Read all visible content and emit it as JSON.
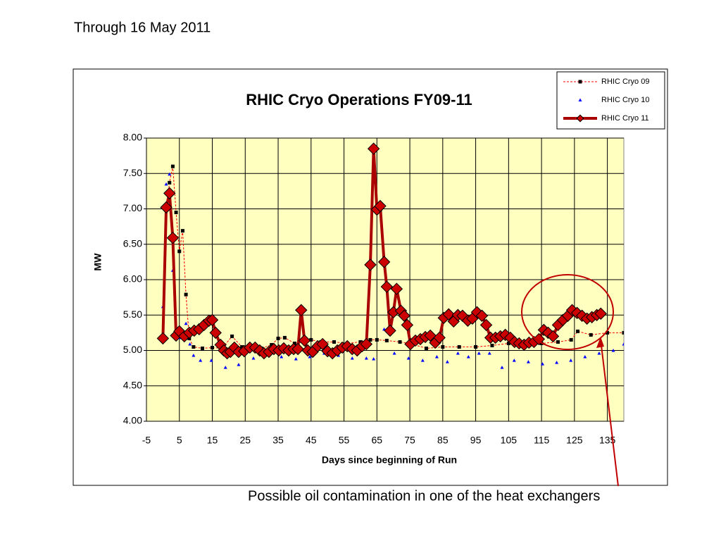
{
  "header": "Through 16 May 2011",
  "annotation": "Possible oil contamination in one of the heat exchangers",
  "chart_data": {
    "type": "line",
    "title": "RHIC Cryo Operations FY09-11",
    "x_label": "Days since beginning of Run",
    "y_label": "MW",
    "xlim": [
      -5,
      140
    ],
    "ylim": [
      4,
      8
    ],
    "xticks": [
      -5,
      5,
      15,
      25,
      35,
      45,
      55,
      65,
      75,
      85,
      95,
      105,
      115,
      125,
      135
    ],
    "yticks": [
      {
        "value": 4,
        "label": "4.00"
      },
      {
        "value": 4.5,
        "label": "4.50"
      },
      {
        "value": 5,
        "label": "5.00"
      },
      {
        "value": 5.5,
        "label": "5.50"
      },
      {
        "value": 6,
        "label": "6.00"
      },
      {
        "value": 6.5,
        "label": "6.50"
      },
      {
        "value": 7,
        "label": "7.00"
      },
      {
        "value": 7.5,
        "label": "7.50"
      },
      {
        "value": 8,
        "label": "8.00"
      }
    ],
    "grid": true,
    "legend": "upper right",
    "background": "#ffffc0",
    "series": [
      {
        "name": "RHIC Cryo 09",
        "color": "#000000",
        "line_color": "#ff0000",
        "line_style": "dashed",
        "marker": "square",
        "x": [
          1.2,
          2,
          3,
          4,
          5,
          6,
          7,
          8,
          9.3,
          12,
          15,
          18,
          21,
          24,
          27,
          30,
          33,
          35,
          37,
          40,
          43,
          45,
          48,
          52,
          56,
          60,
          63,
          65,
          68,
          72,
          75,
          80,
          85,
          90,
          95,
          100,
          105,
          110,
          115,
          120,
          124,
          126,
          130,
          135,
          140
        ],
        "values": [
          7.05,
          7.37,
          7.6,
          6.95,
          6.4,
          6.69,
          5.79,
          5.17,
          5.05,
          5.03,
          5.04,
          5.03,
          5.2,
          5.05,
          5.04,
          5.03,
          5.08,
          5.17,
          5.18,
          5.1,
          5.12,
          5.15,
          5.12,
          5.12,
          5.1,
          5.12,
          5.15,
          5.15,
          5.14,
          5.12,
          5.1,
          5.03,
          5.05,
          5.05,
          5.05,
          5.07,
          5.1,
          5.1,
          5.1,
          5.12,
          5.15,
          5.27,
          5.22,
          5.25,
          5.25
        ]
      },
      {
        "name": "RHIC Cryo 10",
        "color": "#0000ff",
        "line_color": null,
        "line_style": "none",
        "marker": "triangle",
        "x": [
          0,
          1,
          2,
          3,
          4,
          5,
          7,
          8.2,
          9.3,
          11.4,
          14.7,
          19,
          23,
          27.5,
          31.8,
          36,
          40.4,
          44.6,
          49,
          53.3,
          57.5,
          61.8,
          64,
          67.2,
          70.3,
          74.6,
          78.9,
          83.2,
          86.4,
          89.6,
          92.8,
          96,
          99.2,
          103,
          106.7,
          111,
          115.3,
          119.6,
          123.9,
          128.2,
          132.5,
          136.8,
          140
        ],
        "values": [
          5.62,
          7.35,
          7.49,
          6.13,
          5.2,
          5.18,
          5.38,
          5.09,
          4.93,
          4.86,
          4.86,
          4.76,
          4.8,
          4.89,
          4.96,
          4.91,
          4.88,
          4.91,
          4.96,
          4.93,
          4.89,
          4.89,
          4.88,
          5.3,
          4.96,
          4.89,
          4.86,
          4.91,
          4.84,
          4.96,
          4.91,
          4.96,
          4.96,
          4.76,
          4.86,
          4.84,
          4.81,
          4.83,
          4.86,
          4.91,
          4.96,
          5.0,
          5.09
        ]
      },
      {
        "name": "RHIC Cryo 11",
        "color": "#cc0000",
        "line_color": "#aa0000",
        "line_style": "solid",
        "marker": "diamond",
        "x": [
          0,
          1,
          2,
          3,
          4,
          5,
          6.5,
          8,
          9.5,
          11,
          12.5,
          14,
          15,
          16,
          17.5,
          18.5,
          19.5,
          20.5,
          21.7,
          23,
          24.7,
          26.4,
          28,
          29.4,
          30.7,
          32.2,
          33.7,
          35.2,
          36.7,
          38.2,
          39.7,
          41,
          42,
          43,
          44,
          45.5,
          47,
          48.5,
          50,
          51.5,
          53,
          54.5,
          56,
          57.5,
          59,
          60.5,
          61.8,
          63,
          64,
          65,
          66,
          67.2,
          68,
          69,
          70,
          71,
          72.3,
          73.3,
          74.2,
          75.2,
          76.7,
          78.2,
          79.7,
          81.2,
          82.7,
          84,
          85.3,
          86.8,
          88.3,
          89.6,
          91,
          92.6,
          94,
          95.4,
          96.9,
          98.2,
          99.5,
          101,
          102.5,
          104,
          105.5,
          106.8,
          108.2,
          109.7,
          111.2,
          112.7,
          114.2,
          115.7,
          117,
          118.5,
          120,
          121.5,
          123,
          124.3,
          125.8,
          127.3,
          128.8,
          130.3,
          131.8,
          133
        ],
        "values": [
          5.17,
          7.02,
          7.22,
          6.59,
          5.21,
          5.27,
          5.2,
          5.25,
          5.28,
          5.3,
          5.36,
          5.42,
          5.43,
          5.25,
          5.08,
          5.0,
          4.96,
          4.98,
          5.04,
          4.98,
          4.99,
          5.04,
          5.04,
          5.0,
          4.96,
          4.98,
          5.02,
          5.0,
          5.03,
          5.0,
          5.02,
          5.02,
          5.57,
          5.14,
          5.0,
          4.98,
          5.06,
          5.09,
          4.99,
          4.96,
          5.0,
          5.04,
          5.06,
          5.02,
          5.0,
          5.06,
          5.09,
          6.21,
          7.85,
          6.99,
          7.04,
          6.25,
          5.9,
          5.28,
          5.54,
          5.87,
          5.56,
          5.49,
          5.36,
          5.09,
          5.14,
          5.16,
          5.19,
          5.21,
          5.11,
          5.18,
          5.46,
          5.51,
          5.41,
          5.5,
          5.49,
          5.42,
          5.45,
          5.54,
          5.49,
          5.36,
          5.18,
          5.18,
          5.2,
          5.22,
          5.18,
          5.12,
          5.1,
          5.08,
          5.11,
          5.12,
          5.16,
          5.29,
          5.25,
          5.2,
          5.36,
          5.43,
          5.49,
          5.57,
          5.53,
          5.49,
          5.45,
          5.47,
          5.5,
          5.52
        ]
      }
    ]
  }
}
